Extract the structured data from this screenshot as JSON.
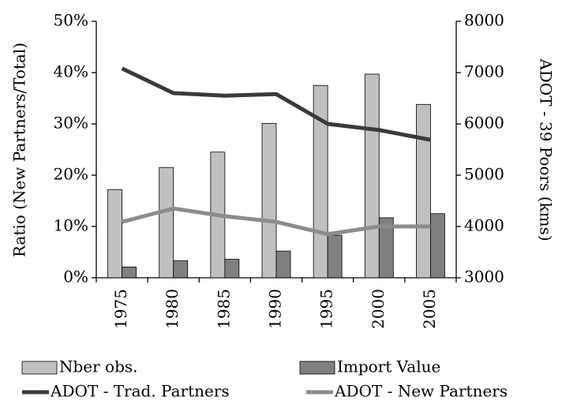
{
  "chart_data": {
    "type": "bar",
    "ylabel": "Ratio (New Partners/Total)",
    "y2label": "ADOT - 39 Poors (kms)",
    "categories": [
      "1975",
      "1980",
      "1985",
      "1990",
      "1995",
      "2000",
      "2005"
    ],
    "series": [
      {
        "name": "Nber obs.",
        "type": "bar",
        "color": "#c0c0c0",
        "values": [
          17.2,
          21.5,
          24.5,
          30.1,
          37.5,
          39.7,
          33.8
        ]
      },
      {
        "name": "Import Value",
        "type": "bar",
        "color": "#808080",
        "values": [
          2.1,
          3.3,
          3.6,
          5.2,
          8.3,
          11.7,
          12.5
        ]
      },
      {
        "name": "ADOT - Trad. Partners",
        "type": "line",
        "axis": "y2",
        "color": "#3a3a3a",
        "values": [
          7080,
          6600,
          6550,
          6580,
          6000,
          5880,
          5690
        ]
      },
      {
        "name": "ADOT - New Partners",
        "type": "line",
        "axis": "y2",
        "color": "#8c8c8c",
        "values": [
          4090,
          4350,
          4200,
          4090,
          3850,
          4000,
          4000
        ]
      }
    ],
    "ylim": [
      0,
      50
    ],
    "yticks": [
      {
        "value": 0,
        "label": "0%"
      },
      {
        "value": 10,
        "label": "10%"
      },
      {
        "value": 20,
        "label": "20%"
      },
      {
        "value": 30,
        "label": "30%"
      },
      {
        "value": 40,
        "label": "40%"
      },
      {
        "value": 50,
        "label": "50%"
      }
    ],
    "y2lim": [
      3000,
      8000
    ],
    "y2ticks": [
      3000,
      4000,
      5000,
      6000,
      7000,
      8000
    ]
  }
}
